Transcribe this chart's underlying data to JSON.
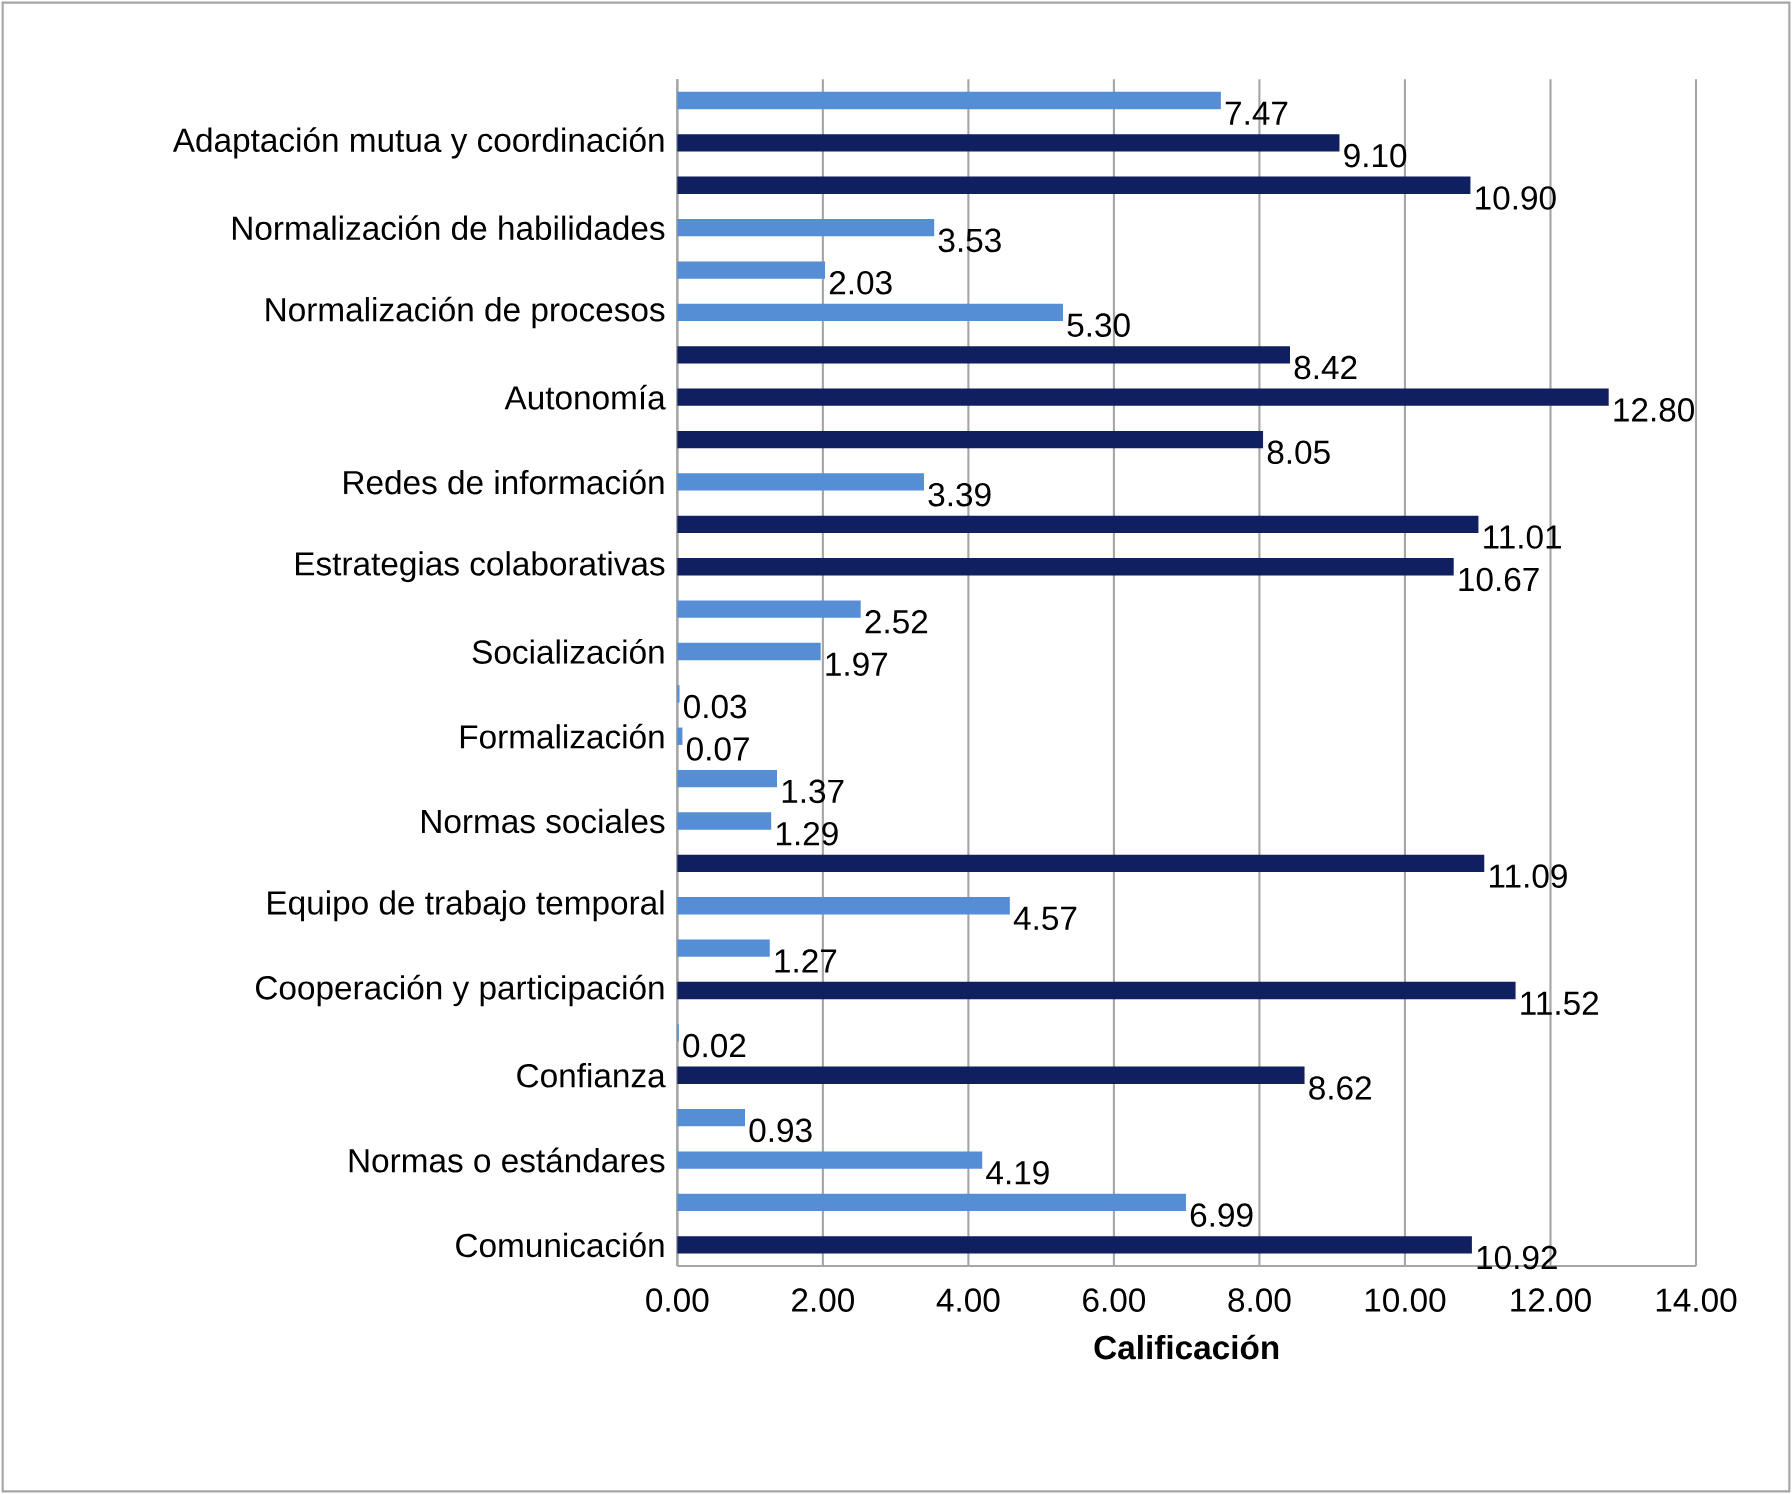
{
  "chart_data": {
    "type": "bar",
    "orientation": "horizontal",
    "xlabel": "Calificación",
    "categories": [
      null,
      "Adaptación mutua y coordinación",
      null,
      "Normalización de habilidades",
      null,
      "Normalización de procesos",
      null,
      "Autonomía",
      null,
      "Redes de información",
      null,
      "Estrategias colaborativas",
      null,
      "Socialización",
      null,
      "Formalización",
      null,
      "Normas sociales",
      null,
      "Equipo de trabajo temporal",
      null,
      "Cooperación y participación",
      null,
      "Confianza",
      null,
      "Normas o estándares",
      null,
      "Comunicación"
    ],
    "values": [
      7.47,
      9.1,
      10.9,
      3.53,
      2.03,
      5.3,
      8.42,
      12.8,
      8.05,
      3.39,
      11.01,
      10.67,
      2.52,
      1.97,
      0.03,
      0.07,
      1.37,
      1.29,
      11.09,
      4.57,
      1.27,
      11.52,
      0.02,
      8.62,
      0.93,
      4.19,
      6.99,
      10.92
    ],
    "value_labels": [
      "7.47",
      "9.10",
      "10.90",
      "3.53",
      "2.03",
      "5.30",
      "8.42",
      "12.80",
      "8.05",
      "3.39",
      "11.01",
      "10.67",
      "2.52",
      "1.97",
      "0.03",
      "0.07",
      "1.37",
      "1.29",
      "11.09",
      "4.57",
      "1.27",
      "11.52",
      "0.02",
      "8.62",
      "0.93",
      "4.19",
      "6.99",
      "10.92"
    ],
    "colors": [
      "#558ed5",
      "#0f1f5f",
      "#0f1f5f",
      "#558ed5",
      "#558ed5",
      "#558ed5",
      "#0f1f5f",
      "#0f1f5f",
      "#0f1f5f",
      "#558ed5",
      "#0f1f5f",
      "#0f1f5f",
      "#558ed5",
      "#558ed5",
      "#558ed5",
      "#558ed5",
      "#558ed5",
      "#558ed5",
      "#0f1f5f",
      "#558ed5",
      "#558ed5",
      "#0f1f5f",
      "#558ed5",
      "#0f1f5f",
      "#558ed5",
      "#558ed5",
      "#558ed5",
      "#0f1f5f"
    ],
    "xlim": [
      0,
      14
    ],
    "xticks": [
      {
        "value": 0,
        "label": "0.00"
      },
      {
        "value": 2,
        "label": "2.00"
      },
      {
        "value": 4,
        "label": "4.00"
      },
      {
        "value": 6,
        "label": "6.00"
      },
      {
        "value": 8,
        "label": "8.00"
      },
      {
        "value": 10,
        "label": "10.00"
      },
      {
        "value": 12,
        "label": "12.00"
      },
      {
        "value": 14,
        "label": "14.00"
      }
    ],
    "grid": "x"
  }
}
